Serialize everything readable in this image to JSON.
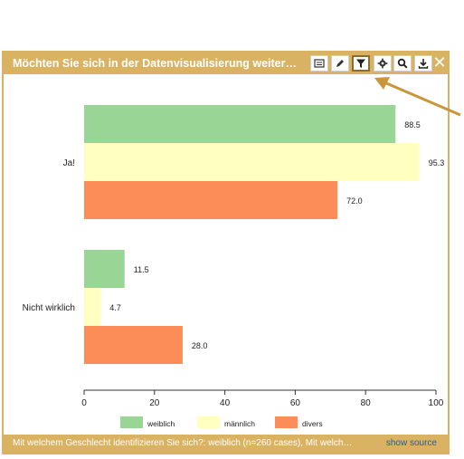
{
  "widget": {
    "title": "Möchten Sie sich in der Datenvisualisierung weiter…",
    "toolbar": [
      {
        "name": "table-icon"
      },
      {
        "name": "pencil-icon"
      },
      {
        "name": "filter-icon",
        "active": true
      },
      {
        "name": "gear-icon"
      },
      {
        "name": "zoom-icon"
      },
      {
        "name": "download-icon"
      }
    ],
    "close_label": "✕",
    "footer_text": "Mit welchem Geschlecht identifizieren Sie sich?: weiblich (n=260 cases), Mit welch…",
    "show_source_label": "show source"
  },
  "colors": {
    "accent": "#d9b262",
    "weiblich": "#99d594",
    "männlich": "#ffffbf",
    "divers": "#fc8d59",
    "annotation_arrow": "#c9963a"
  },
  "chart_data": {
    "type": "bar",
    "orientation": "horizontal",
    "categories": [
      "Ja!",
      "Nicht wirklich"
    ],
    "series": [
      {
        "name": "weiblich",
        "values": [
          88.5,
          11.5
        ]
      },
      {
        "name": "männlich",
        "values": [
          95.3,
          4.7
        ]
      },
      {
        "name": "divers",
        "values": [
          72.0,
          28.0
        ]
      }
    ],
    "value_labels": [
      [
        "88.5",
        "11.5"
      ],
      [
        "95.3",
        "4.7"
      ],
      [
        "72.0",
        "28.0"
      ]
    ],
    "xlim": [
      0,
      100
    ],
    "xticks": [
      0,
      20,
      40,
      60,
      80,
      100
    ],
    "legend_position": "bottom",
    "grid": false
  }
}
